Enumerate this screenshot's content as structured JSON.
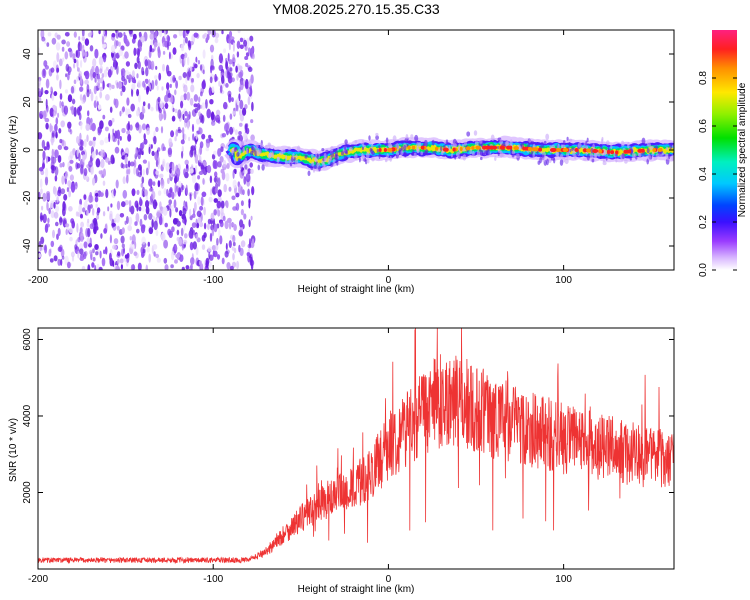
{
  "title": "YM08.2025.270.15.35.C33",
  "chart_data": [
    {
      "type": "heatmap",
      "name": "spectrogram",
      "xlabel": "Height of straight line (km)",
      "ylabel": "Frequency (Hz)",
      "xlim": [
        -200,
        163
      ],
      "ylim": [
        -50,
        50
      ],
      "xticks": [
        -200,
        -100,
        0,
        100
      ],
      "yticks": [
        -40,
        -20,
        0,
        20,
        40
      ],
      "xtick_labels": [
        "-200",
        "-100",
        "0",
        "100"
      ],
      "ytick_labels": [
        "-40",
        "-20",
        "0",
        "20",
        "40"
      ],
      "noise_region_x": [
        -200,
        -77
      ],
      "signal_region_x": [
        -90,
        163
      ],
      "signal_frequency_profile": [
        {
          "x": -87,
          "f": -4
        },
        {
          "x": -80,
          "f": 0
        },
        {
          "x": -70,
          "f": -2
        },
        {
          "x": -60,
          "f": -3
        },
        {
          "x": -50,
          "f": -3
        },
        {
          "x": -40,
          "f": -5
        },
        {
          "x": -35,
          "f": -4
        },
        {
          "x": -25,
          "f": -1
        },
        {
          "x": -15,
          "f": 0
        },
        {
          "x": 0,
          "f": 0
        },
        {
          "x": 10,
          "f": 1
        },
        {
          "x": 20,
          "f": 1
        },
        {
          "x": 35,
          "f": 0
        },
        {
          "x": 50,
          "f": 1
        },
        {
          "x": 70,
          "f": 1
        },
        {
          "x": 90,
          "f": 0
        },
        {
          "x": 110,
          "f": 0
        },
        {
          "x": 130,
          "f": -1
        },
        {
          "x": 150,
          "f": 0
        },
        {
          "x": 163,
          "f": 0
        }
      ]
    },
    {
      "type": "line",
      "name": "snr",
      "xlabel": "Height of straight line (km)",
      "ylabel": "SNR (10 * v/v)",
      "xlim": [
        -200,
        163
      ],
      "ylim": [
        0,
        6300
      ],
      "xticks": [
        -200,
        -100,
        0,
        100
      ],
      "yticks": [
        2000,
        4000,
        6000
      ],
      "xtick_labels": [
        "-200",
        "-100",
        "0",
        "100"
      ],
      "ytick_labels": [
        "2000",
        "4000",
        "6000"
      ],
      "color": "#ee3333",
      "trend": [
        {
          "x": -200,
          "y": 230
        },
        {
          "x": -80,
          "y": 230
        },
        {
          "x": -70,
          "y": 450
        },
        {
          "x": -60,
          "y": 900
        },
        {
          "x": -50,
          "y": 1300
        },
        {
          "x": -40,
          "y": 1700
        },
        {
          "x": -30,
          "y": 1900
        },
        {
          "x": -20,
          "y": 2100
        },
        {
          "x": -10,
          "y": 2500
        },
        {
          "x": 0,
          "y": 3200
        },
        {
          "x": 10,
          "y": 3700
        },
        {
          "x": 20,
          "y": 4100
        },
        {
          "x": 30,
          "y": 4400
        },
        {
          "x": 40,
          "y": 4400
        },
        {
          "x": 60,
          "y": 4000
        },
        {
          "x": 80,
          "y": 3700
        },
        {
          "x": 100,
          "y": 3400
        },
        {
          "x": 120,
          "y": 3200
        },
        {
          "x": 140,
          "y": 3000
        },
        {
          "x": 163,
          "y": 2800
        }
      ]
    }
  ],
  "colorbar": {
    "label": "Normalized spectral amplitude",
    "ticks": [
      0.0,
      0.2,
      0.4,
      0.6,
      0.8
    ],
    "tick_labels": [
      "0.0",
      "0.2",
      "0.4",
      "0.6",
      "0.8"
    ],
    "range": [
      0,
      1
    ]
  },
  "colors": {
    "noise": "#7a2ee8",
    "line": "#ee3333",
    "background": "#ffffff"
  }
}
